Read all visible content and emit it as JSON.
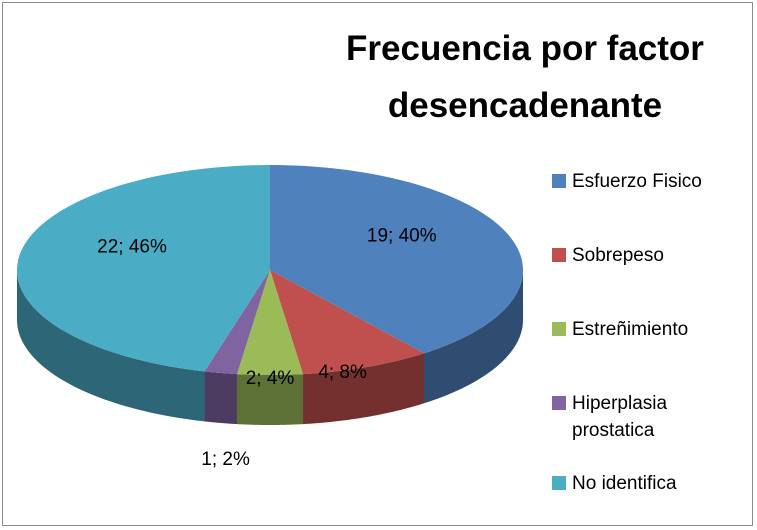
{
  "chart_data": {
    "type": "pie",
    "title": "Frecuencia por factor desencadenante",
    "categories": [
      "Esfuerzo Fisico",
      "Sobrepeso",
      "Estreñimiento",
      "Hiperplasia prostatica",
      "No identifica"
    ],
    "values": [
      19,
      4,
      2,
      1,
      22
    ],
    "value_labels": [
      "19; 40%",
      "4; 8%",
      "2; 4%",
      "1; 2%",
      "22; 46%"
    ],
    "colors": [
      "#4f81bd",
      "#c0504d",
      "#9bbb59",
      "#8064a2",
      "#4bacc6"
    ],
    "legend": "right"
  }
}
